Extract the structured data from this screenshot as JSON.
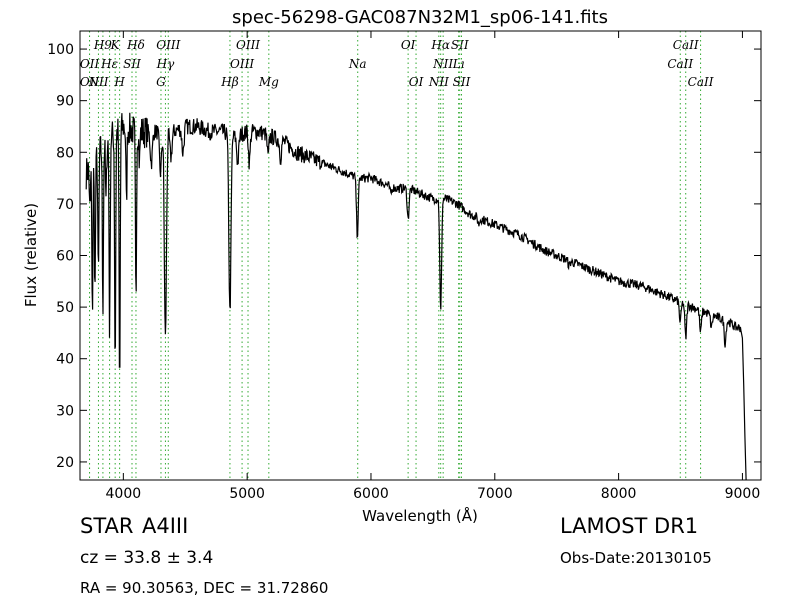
{
  "chart_data": {
    "type": "line",
    "title": "spec-56298-GAC087N32M1_sp06-141.fits",
    "xlabel": "Wavelength (Å)",
    "ylabel": "Flux (relative)",
    "xlim": [
      3650,
      9150
    ],
    "ylim": [
      16.5,
      103.5
    ],
    "xticks": [
      4000,
      5000,
      6000,
      7000,
      8000,
      9000
    ],
    "yticks": [
      20,
      30,
      40,
      50,
      60,
      70,
      80,
      90,
      100
    ],
    "grid": false,
    "series": [
      {
        "color": "#000000",
        "continuum": [
          [
            3700,
            76
          ],
          [
            3800,
            80
          ],
          [
            3900,
            83
          ],
          [
            4000,
            85
          ],
          [
            4100,
            84
          ],
          [
            4200,
            84
          ],
          [
            4300,
            84
          ],
          [
            4400,
            84
          ],
          [
            4500,
            85
          ],
          [
            4600,
            85
          ],
          [
            4700,
            84
          ],
          [
            4800,
            84
          ],
          [
            4900,
            83
          ],
          [
            5000,
            84
          ],
          [
            5100,
            84
          ],
          [
            5200,
            83
          ],
          [
            5300,
            82
          ],
          [
            5400,
            80
          ],
          [
            5500,
            79
          ],
          [
            5600,
            78
          ],
          [
            5700,
            77
          ],
          [
            5800,
            76
          ],
          [
            5900,
            75
          ],
          [
            6000,
            75
          ],
          [
            6100,
            74
          ],
          [
            6200,
            73
          ],
          [
            6300,
            73
          ],
          [
            6400,
            72
          ],
          [
            6500,
            71
          ],
          [
            6600,
            71
          ],
          [
            6700,
            70
          ],
          [
            6800,
            68
          ],
          [
            6900,
            67
          ],
          [
            7000,
            66
          ],
          [
            7200,
            64
          ],
          [
            7400,
            61
          ],
          [
            7600,
            59
          ],
          [
            7800,
            57
          ],
          [
            8000,
            55
          ],
          [
            8200,
            54
          ],
          [
            8400,
            52
          ],
          [
            8600,
            50
          ],
          [
            8800,
            48
          ],
          [
            8900,
            47
          ],
          [
            8950,
            46
          ],
          [
            8980,
            46
          ]
        ],
        "absorption_lines": [
          {
            "x": 3730,
            "y": 68
          },
          {
            "x": 3750,
            "y": 48
          },
          {
            "x": 3771,
            "y": 53
          },
          {
            "x": 3798,
            "y": 55
          },
          {
            "x": 3835,
            "y": 50
          },
          {
            "x": 3860,
            "y": 70
          },
          {
            "x": 3889,
            "y": 45
          },
          {
            "x": 3934,
            "y": 38
          },
          {
            "x": 3970,
            "y": 32
          },
          {
            "x": 4025,
            "y": 70
          },
          {
            "x": 4102,
            "y": 51
          },
          {
            "x": 4130,
            "y": 78
          },
          {
            "x": 4226,
            "y": 78
          },
          {
            "x": 4300,
            "y": 76
          },
          {
            "x": 4340,
            "y": 44
          },
          {
            "x": 4384,
            "y": 79
          },
          {
            "x": 4481,
            "y": 80
          },
          {
            "x": 4861,
            "y": 49
          },
          {
            "x": 4924,
            "y": 78
          },
          {
            "x": 5018,
            "y": 78
          },
          {
            "x": 5169,
            "y": 79
          },
          {
            "x": 5270,
            "y": 79
          },
          {
            "x": 5890,
            "y": 64
          },
          {
            "x": 6160,
            "y": 72
          },
          {
            "x": 6300,
            "y": 67
          },
          {
            "x": 6563,
            "y": 49
          },
          {
            "x": 6870,
            "y": 66
          },
          {
            "x": 7600,
            "y": 58
          },
          {
            "x": 8498,
            "y": 47
          },
          {
            "x": 8542,
            "y": 44
          },
          {
            "x": 8662,
            "y": 45
          },
          {
            "x": 8750,
            "y": 46
          },
          {
            "x": 8860,
            "y": 43
          }
        ],
        "red_edge": [
          [
            9000,
            44
          ],
          [
            9010,
            35
          ],
          [
            9020,
            25
          ],
          [
            9030,
            16.5
          ]
        ]
      }
    ],
    "line_markers": [
      {
        "label": "OII",
        "x": 3727,
        "row": 2
      },
      {
        "label": "H9",
        "x": 3835,
        "row": 1
      },
      {
        "label": "OII",
        "x": 3727,
        "row": 3
      },
      {
        "label": "Hε",
        "x": 3889,
        "row": 2
      },
      {
        "label": "NII",
        "x": 3799,
        "row": 3
      },
      {
        "label": "K",
        "x": 3934,
        "row": 1
      },
      {
        "label": "SII",
        "x": 4070,
        "row": 2
      },
      {
        "label": "H",
        "x": 3970,
        "row": 3
      },
      {
        "label": "Hδ",
        "x": 4102,
        "row": 1
      },
      {
        "label": "OIII",
        "x": 4363,
        "row": 1
      },
      {
        "label": "Hγ",
        "x": 4340,
        "row": 2
      },
      {
        "label": "G",
        "x": 4304,
        "row": 3
      },
      {
        "label": "OIII",
        "x": 5007,
        "row": 1
      },
      {
        "label": "OIII",
        "x": 4959,
        "row": 2
      },
      {
        "label": "Hβ",
        "x": 4861,
        "row": 3
      },
      {
        "label": "Mg",
        "x": 5175,
        "row": 3
      },
      {
        "label": "Na",
        "x": 5893,
        "row": 2
      },
      {
        "label": "OI",
        "x": 6300,
        "row": 1
      },
      {
        "label": "OI",
        "x": 6364,
        "row": 3
      },
      {
        "label": "Hα",
        "x": 6563,
        "row": 1
      },
      {
        "label": "NII",
        "x": 6583,
        "row": 2
      },
      {
        "label": "NII",
        "x": 6548,
        "row": 3
      },
      {
        "label": "SII",
        "x": 6717,
        "row": 1
      },
      {
        "label": "Lı",
        "x": 6708,
        "row": 2
      },
      {
        "label": "SII",
        "x": 6731,
        "row": 3
      },
      {
        "label": "CaII",
        "x": 8542,
        "row": 1
      },
      {
        "label": "CaII",
        "x": 8498,
        "row": 2
      },
      {
        "label": "CaII",
        "x": 8662,
        "row": 3
      }
    ]
  },
  "info": {
    "class_label": "STAR",
    "subclass": "A4III",
    "cz_text": "cz = 33.8 ± 3.4",
    "radec_text": "RA = 90.30563, DEC = 31.72860",
    "survey": "LAMOST DR1",
    "obs_date": "Obs-Date:20130105"
  }
}
